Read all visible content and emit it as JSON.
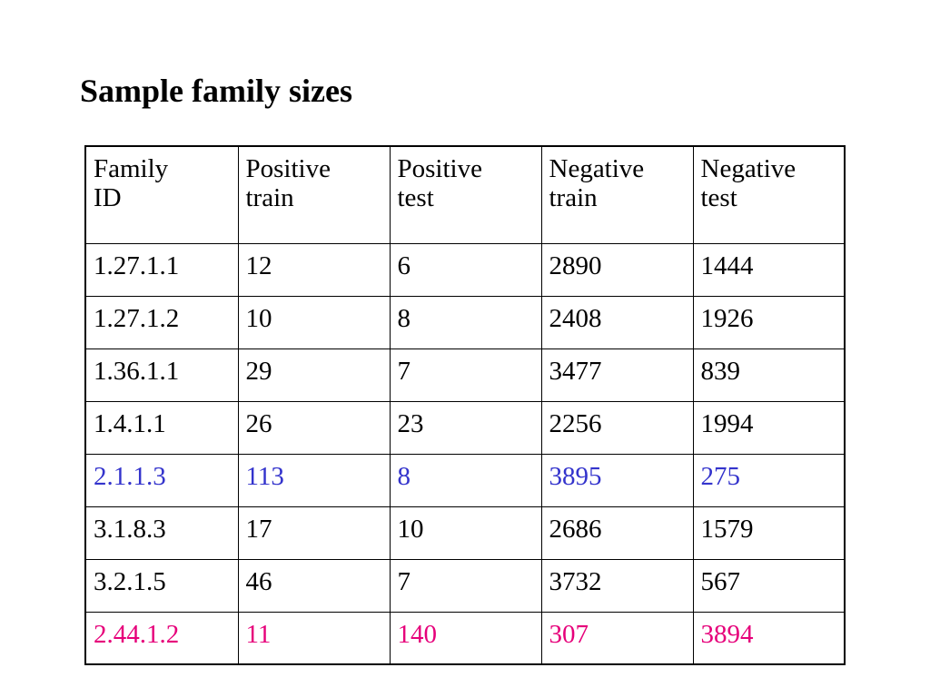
{
  "title": "Sample family sizes",
  "table": {
    "headers": [
      [
        "Family",
        "ID"
      ],
      [
        "Positive",
        "train"
      ],
      [
        "Positive",
        "test"
      ],
      [
        "Negative",
        "train"
      ],
      [
        "Negative",
        "test"
      ]
    ],
    "rows": [
      {
        "cells": [
          "1.27.1.1",
          "12",
          "6",
          "2890",
          "1444"
        ],
        "highlight": "none"
      },
      {
        "cells": [
          "1.27.1.2",
          "10",
          "8",
          "2408",
          "1926"
        ],
        "highlight": "none"
      },
      {
        "cells": [
          "1.36.1.1",
          "29",
          "7",
          "3477",
          "839"
        ],
        "highlight": "none"
      },
      {
        "cells": [
          "1.4.1.1",
          "26",
          "23",
          "2256",
          "1994"
        ],
        "highlight": "none"
      },
      {
        "cells": [
          "2.1.1.3",
          "113",
          "8",
          "3895",
          "275"
        ],
        "highlight": "blue"
      },
      {
        "cells": [
          "3.1.8.3",
          "17",
          "10",
          "2686",
          "1579"
        ],
        "highlight": "none"
      },
      {
        "cells": [
          "3.2.1.5",
          "46",
          "7",
          "3732",
          "567"
        ],
        "highlight": "none"
      },
      {
        "cells": [
          "2.44.1.2",
          "11",
          "140",
          "307",
          "3894"
        ],
        "highlight": "pink"
      }
    ]
  },
  "colors": {
    "text": "#000000",
    "highlight_blue": "#3333cc",
    "highlight_pink": "#e6007a"
  }
}
